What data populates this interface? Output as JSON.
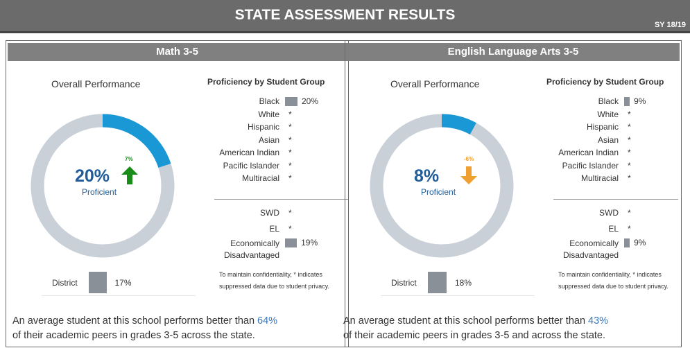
{
  "header": {
    "title": "STATE ASSESSMENT RESULTS",
    "year": "SY 18/19"
  },
  "panels": [
    {
      "title": "Math 3-5",
      "overall": {
        "heading": "Overall Performance",
        "value": 20,
        "value_label": "20%",
        "caption": "Proficient",
        "change": 7,
        "change_label": "7%"
      },
      "district": {
        "label": "District",
        "value": 17,
        "value_label": "17%"
      },
      "groups_heading": "Proficiency by Student Group",
      "groups": [
        {
          "name": "Black",
          "value": 20,
          "label": "20%"
        },
        {
          "name": "White",
          "label": "*"
        },
        {
          "name": "Hispanic",
          "label": "*"
        },
        {
          "name": "Asian",
          "label": "*"
        },
        {
          "name": "American Indian",
          "label": "*"
        },
        {
          "name": "Pacific Islander",
          "label": "*"
        },
        {
          "name": "Multiracial",
          "label": "*"
        }
      ],
      "other_groups": [
        {
          "name": "SWD",
          "label": "*"
        },
        {
          "name": "EL",
          "label": "*"
        },
        {
          "name": "Economically Disadvantaged",
          "value": 19,
          "label": "19%"
        }
      ],
      "note": "To maintain confidentiality, * indicates suppressed data due to student privacy.",
      "summary": {
        "before": "An average student at this school performs better than",
        "value": 64,
        "value_label": "64%",
        "after": "of their academic peers in grades 3-5 across the state."
      }
    },
    {
      "title": "English Language Arts 3-5",
      "overall": {
        "heading": "Overall Performance",
        "value": 8,
        "value_label": "8%",
        "caption": "Proficient",
        "change": -6,
        "change_label": "-6%"
      },
      "district": {
        "label": "District",
        "value": 18,
        "value_label": "18%"
      },
      "groups_heading": "Proficiency by Student Group",
      "groups": [
        {
          "name": "Black",
          "value": 9,
          "label": "9%"
        },
        {
          "name": "White",
          "label": "*"
        },
        {
          "name": "Hispanic",
          "label": "*"
        },
        {
          "name": "Asian",
          "label": "*"
        },
        {
          "name": "American Indian",
          "label": "*"
        },
        {
          "name": "Pacific Islander",
          "label": "*"
        },
        {
          "name": "Multiracial",
          "label": "*"
        }
      ],
      "other_groups": [
        {
          "name": "SWD",
          "label": "*"
        },
        {
          "name": "EL",
          "label": "*"
        },
        {
          "name": "Economically Disadvantaged",
          "value": 9,
          "label": "9%"
        }
      ],
      "note": "To maintain confidentiality, * indicates suppressed data due to student privacy.",
      "summary": {
        "before": "An average student at this school performs better than",
        "value": 43,
        "value_label": "43%",
        "after": "of their academic peers in grades 3-5 and across the state."
      }
    }
  ]
}
